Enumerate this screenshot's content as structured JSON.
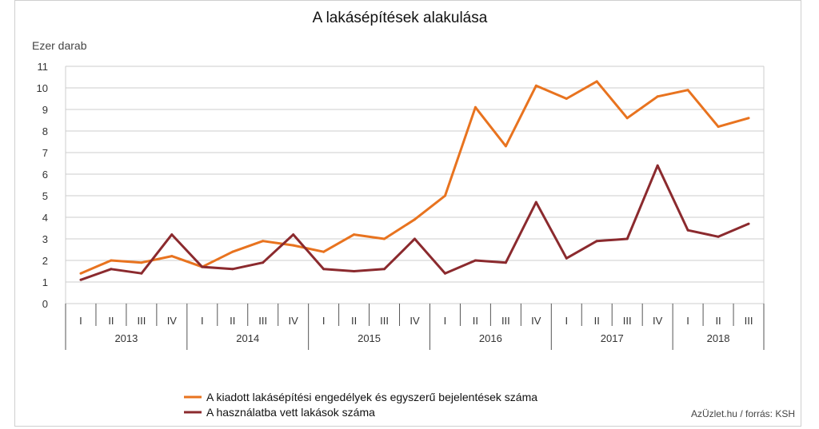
{
  "chart_data": {
    "type": "line",
    "title": "A lakásépítések alakulása",
    "ylabel": "Ezer darab",
    "ylim": [
      0,
      11
    ],
    "yticks": [
      "0",
      "1",
      "2",
      "3",
      "4",
      "5",
      "6",
      "7",
      "8",
      "9",
      "10",
      "11"
    ],
    "grid": true,
    "legend_position": "bottom",
    "quarters": [
      "I",
      "II",
      "III",
      "IV",
      "I",
      "II",
      "III",
      "IV",
      "I",
      "II",
      "III",
      "IV",
      "I",
      "II",
      "III",
      "IV",
      "I",
      "II",
      "III",
      "IV",
      "I",
      "II",
      "III"
    ],
    "years": [
      "2013",
      "2014",
      "2015",
      "2016",
      "2017",
      "2018"
    ],
    "series": [
      {
        "name": "A kiadott lakásépítési engedélyek és egyszerű bejelentések száma",
        "color": "#e8731f",
        "values": [
          1.4,
          2.0,
          1.9,
          2.2,
          1.7,
          2.4,
          2.9,
          2.7,
          2.4,
          3.2,
          3.0,
          3.9,
          5.0,
          9.1,
          7.3,
          10.1,
          9.5,
          10.3,
          8.6,
          9.6,
          9.9,
          8.2,
          8.6
        ]
      },
      {
        "name": "A használatba vett lakások száma",
        "color": "#8b2a2e",
        "values": [
          1.1,
          1.6,
          1.4,
          3.2,
          1.7,
          1.6,
          1.9,
          3.2,
          1.6,
          1.5,
          1.6,
          3.0,
          1.4,
          2.0,
          1.9,
          4.7,
          2.1,
          2.9,
          3.0,
          6.4,
          3.4,
          3.1,
          3.7
        ]
      }
    ],
    "source": "AzÜzlet.hu / forrás: KSH"
  }
}
